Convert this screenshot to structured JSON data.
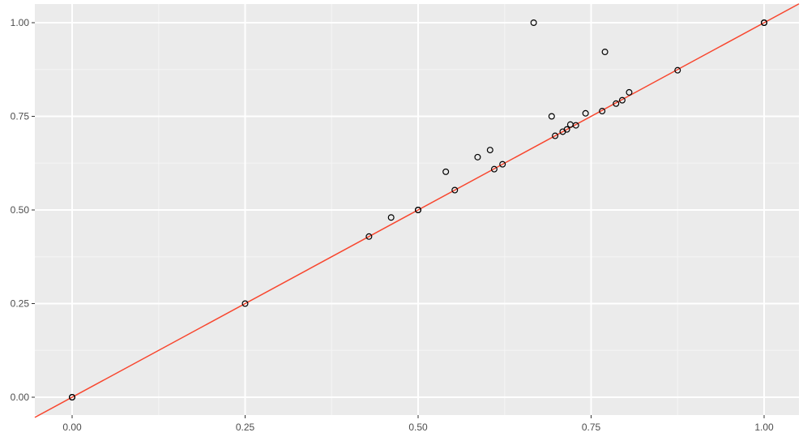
{
  "chart_data": {
    "type": "scatter",
    "title": "",
    "xlabel": "",
    "ylabel": "",
    "xlim": [
      -0.05,
      1.05
    ],
    "ylim": [
      -0.05,
      1.05
    ],
    "grid": true,
    "legend": "none",
    "x_ticks": [
      {
        "value": 0.0,
        "label": "0.00"
      },
      {
        "value": 0.25,
        "label": "0.25"
      },
      {
        "value": 0.5,
        "label": "0.50"
      },
      {
        "value": 0.75,
        "label": "0.75"
      },
      {
        "value": 1.0,
        "label": "1.00"
      }
    ],
    "y_ticks": [
      {
        "value": 0.0,
        "label": "0.00"
      },
      {
        "value": 0.25,
        "label": "0.25"
      },
      {
        "value": 0.5,
        "label": "0.50"
      },
      {
        "value": 0.75,
        "label": "0.75"
      },
      {
        "value": 1.0,
        "label": "1.00"
      }
    ],
    "reference_line": {
      "slope": 1,
      "intercept": 0,
      "color": "#f8462e"
    },
    "points": [
      {
        "x": 0.0,
        "y": 0.0
      },
      {
        "x": 0.0,
        "y": 0.0
      },
      {
        "x": 0.25,
        "y": 0.25
      },
      {
        "x": 0.429,
        "y": 0.429
      },
      {
        "x": 0.461,
        "y": 0.48
      },
      {
        "x": 0.5,
        "y": 0.5
      },
      {
        "x": 0.5,
        "y": 0.5
      },
      {
        "x": 0.54,
        "y": 0.602
      },
      {
        "x": 0.553,
        "y": 0.553
      },
      {
        "x": 0.586,
        "y": 0.641
      },
      {
        "x": 0.604,
        "y": 0.66
      },
      {
        "x": 0.61,
        "y": 0.609
      },
      {
        "x": 0.622,
        "y": 0.622
      },
      {
        "x": 0.667,
        "y": 1.0
      },
      {
        "x": 0.693,
        "y": 0.75
      },
      {
        "x": 0.698,
        "y": 0.698
      },
      {
        "x": 0.709,
        "y": 0.709
      },
      {
        "x": 0.715,
        "y": 0.715
      },
      {
        "x": 0.72,
        "y": 0.728
      },
      {
        "x": 0.728,
        "y": 0.726
      },
      {
        "x": 0.742,
        "y": 0.758
      },
      {
        "x": 0.766,
        "y": 0.764
      },
      {
        "x": 0.77,
        "y": 0.922
      },
      {
        "x": 0.786,
        "y": 0.784
      },
      {
        "x": 0.795,
        "y": 0.793
      },
      {
        "x": 0.805,
        "y": 0.814
      },
      {
        "x": 0.875,
        "y": 0.873
      },
      {
        "x": 1.0,
        "y": 1.0
      },
      {
        "x": 1.0,
        "y": 1.0
      }
    ],
    "colors": {
      "panel_background": "#ebebeb",
      "grid_major": "#ffffff",
      "grid_minor": "#f5f5f5",
      "tick_label": "#4d4d4d",
      "point_stroke": "#000000"
    }
  }
}
